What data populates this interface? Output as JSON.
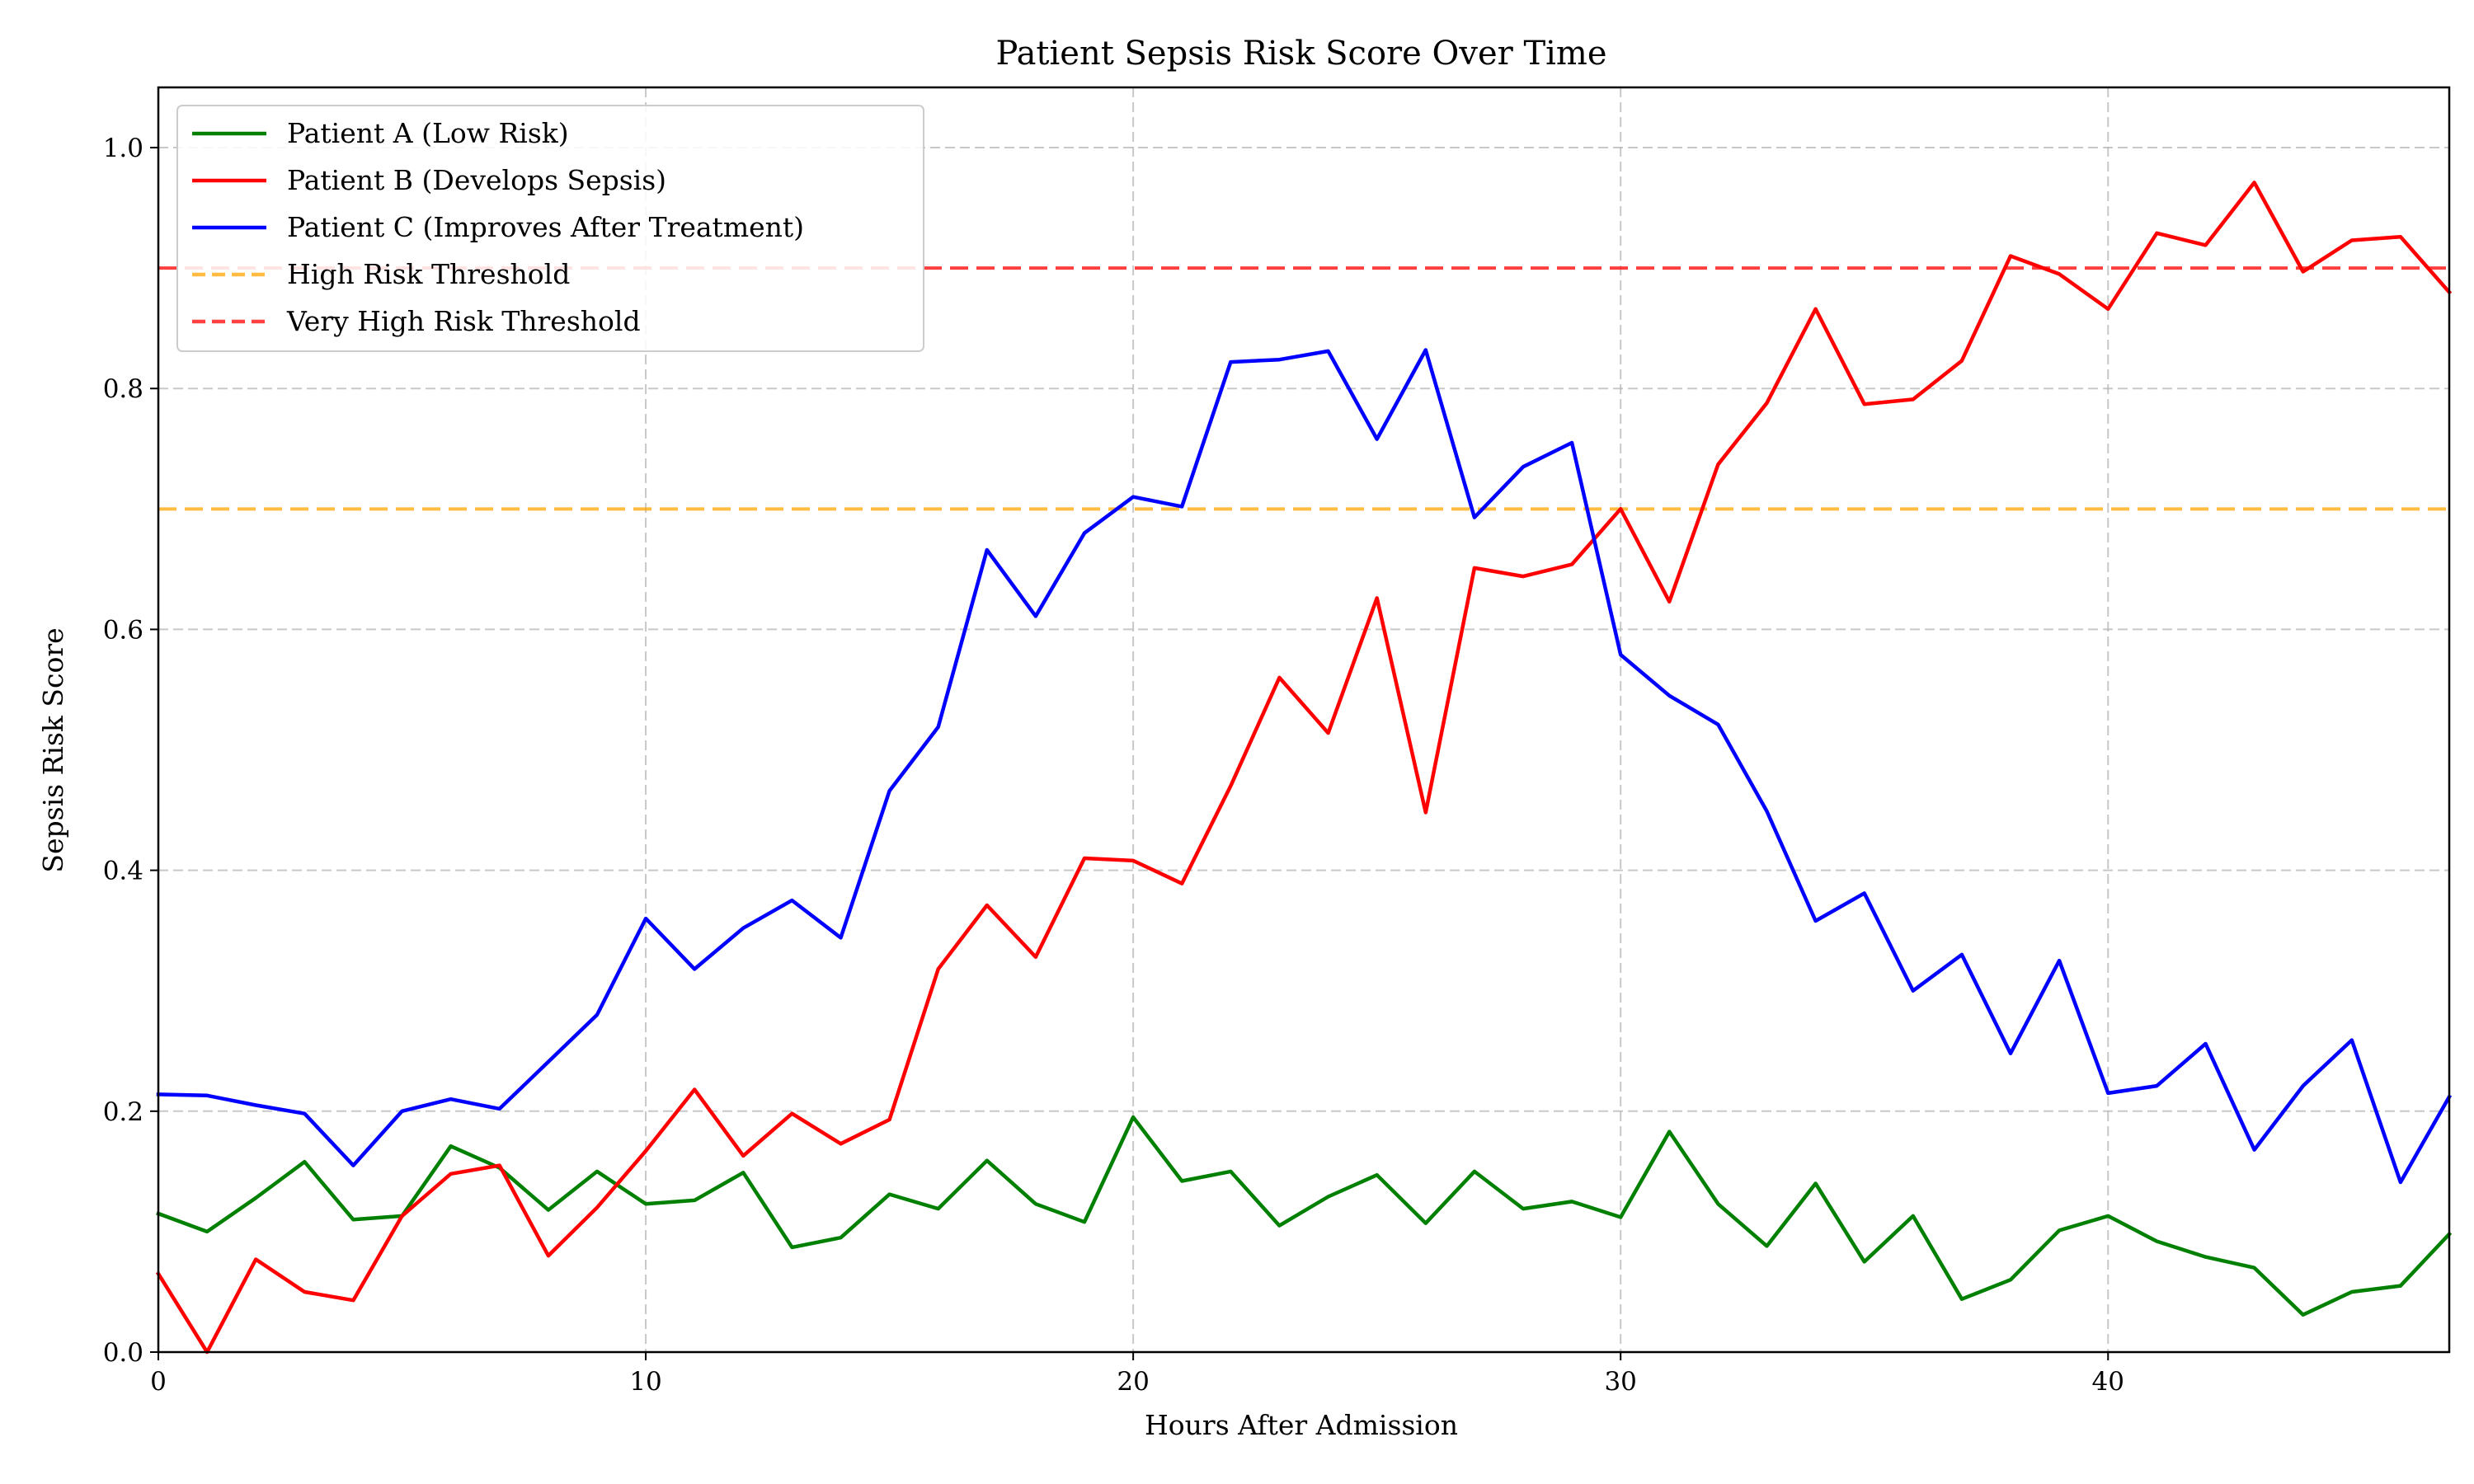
{
  "chart_data": {
    "type": "line",
    "title": "Patient Sepsis Risk Score Over Time",
    "xlabel": "Hours After Admission",
    "ylabel": "Sepsis Risk Score",
    "xlim": [
      0,
      47
    ],
    "ylim": [
      0.0,
      1.05
    ],
    "xticks": [
      0,
      10,
      20,
      30,
      40
    ],
    "yticks": [
      0.0,
      0.2,
      0.4,
      0.6,
      0.8,
      1.0
    ],
    "xtick_labels": [
      "0",
      "10",
      "20",
      "30",
      "40"
    ],
    "ytick_labels": [
      "0.0",
      "0.2",
      "0.4",
      "0.6",
      "0.8",
      "1.0"
    ],
    "grid": true,
    "legend_position": "top-left",
    "x": [
      0,
      1,
      2,
      3,
      4,
      5,
      6,
      7,
      8,
      9,
      10,
      11,
      12,
      13,
      14,
      15,
      16,
      17,
      18,
      19,
      20,
      21,
      22,
      23,
      24,
      25,
      26,
      27,
      28,
      29,
      30,
      31,
      32,
      33,
      34,
      35,
      36,
      37,
      38,
      39,
      40,
      41,
      42,
      43,
      44,
      45,
      46,
      47
    ],
    "series": [
      {
        "name": "Patient A (Low Risk)",
        "color": "#008000",
        "style": "solid",
        "values": [
          0.115,
          0.1,
          0.128,
          0.158,
          0.11,
          0.113,
          0.171,
          0.153,
          0.118,
          0.15,
          0.123,
          0.126,
          0.149,
          0.087,
          0.095,
          0.131,
          0.119,
          0.159,
          0.123,
          0.108,
          0.195,
          0.142,
          0.15,
          0.105,
          0.129,
          0.147,
          0.107,
          0.15,
          0.119,
          0.125,
          0.112,
          0.183,
          0.123,
          0.088,
          0.14,
          0.075,
          0.113,
          0.044,
          0.06,
          0.101,
          0.113,
          0.092,
          0.079,
          0.07,
          0.031,
          0.05,
          0.055,
          0.098
        ]
      },
      {
        "name": "Patient B (Develops Sepsis)",
        "color": "#ff0000",
        "style": "solid",
        "values": [
          0.065,
          0.0,
          0.077,
          0.05,
          0.043,
          0.113,
          0.148,
          0.155,
          0.08,
          0.12,
          0.167,
          0.218,
          0.163,
          0.198,
          0.173,
          0.193,
          0.318,
          0.371,
          0.328,
          0.41,
          0.408,
          0.389,
          0.47,
          0.56,
          0.514,
          0.626,
          0.448,
          0.651,
          0.644,
          0.654,
          0.7,
          0.623,
          0.737,
          0.788,
          0.866,
          0.787,
          0.791,
          0.823,
          0.91,
          0.895,
          0.866,
          0.929,
          0.919,
          0.971,
          0.897,
          0.923,
          0.926,
          0.88
        ]
      },
      {
        "name": "Patient C (Improves After Treatment)",
        "color": "#0000ff",
        "style": "solid",
        "values": [
          0.214,
          0.213,
          0.205,
          0.198,
          0.155,
          0.2,
          0.21,
          0.202,
          0.241,
          0.28,
          0.36,
          0.318,
          0.352,
          0.375,
          0.344,
          0.466,
          0.519,
          0.666,
          0.611,
          0.68,
          0.71,
          0.702,
          0.822,
          0.824,
          0.831,
          0.758,
          0.832,
          0.693,
          0.735,
          0.755,
          0.579,
          0.545,
          0.521,
          0.449,
          0.358,
          0.381,
          0.3,
          0.33,
          0.248,
          0.325,
          0.215,
          0.221,
          0.256,
          0.168,
          0.221,
          0.259,
          0.141,
          0.212
        ]
      }
    ],
    "thresholds": [
      {
        "name": "High Risk Threshold",
        "value": 0.7,
        "color": "#ffa500",
        "style": "dashed"
      },
      {
        "name": "Very High Risk Threshold",
        "value": 0.9,
        "color": "#ff0000",
        "style": "dashed"
      }
    ]
  }
}
